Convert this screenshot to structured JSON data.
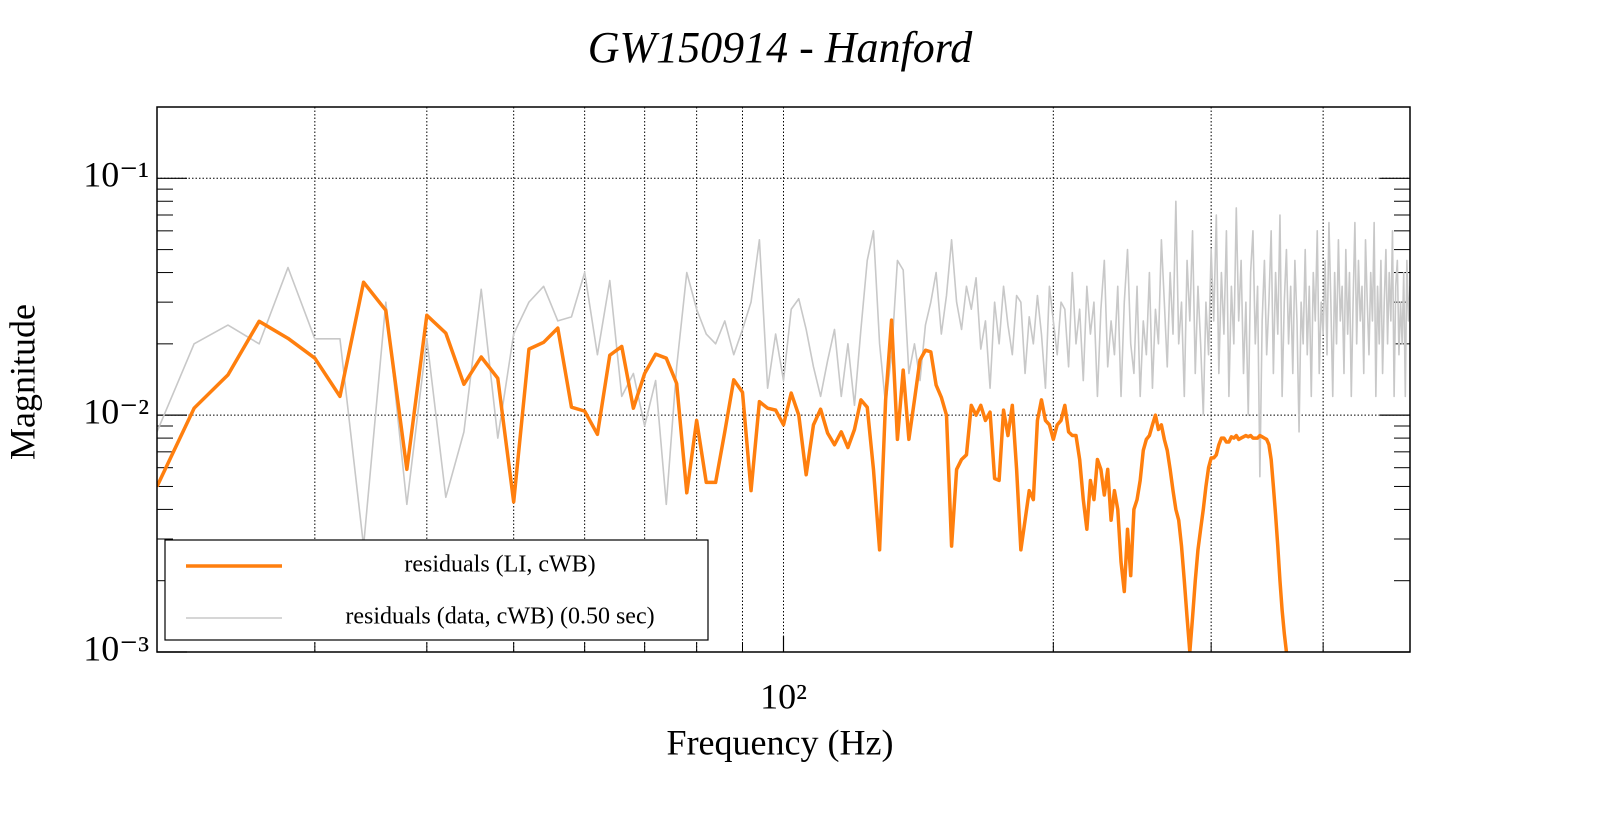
{
  "chart_data": {
    "type": "line",
    "title": "GW150914 - Hanford",
    "xlabel": "Frequency (Hz)",
    "ylabel": "Magnitude",
    "xscale": "log",
    "yscale": "log",
    "grid": true,
    "legend": "lower left",
    "xlim": [
      20,
      500
    ],
    "ylim": [
      0.001,
      0.2
    ],
    "xticks": [
      {
        "value": 100,
        "label": "10²"
      }
    ],
    "xminorticks": [
      30,
      40,
      50,
      60,
      70,
      80,
      90,
      200,
      300,
      400
    ],
    "yticks": [
      {
        "value": 0.001,
        "label": "10⁻³"
      },
      {
        "value": 0.01,
        "label": "10⁻²"
      },
      {
        "value": 0.1,
        "label": "10⁻¹"
      }
    ],
    "yminorticks": [
      0.002,
      0.003,
      0.004,
      0.005,
      0.006,
      0.007,
      0.008,
      0.009,
      0.02,
      0.03,
      0.04,
      0.05,
      0.06,
      0.07,
      0.08,
      0.09,
      0.2
    ],
    "x": [
      20,
      22,
      24,
      26,
      28,
      30,
      32,
      34,
      36,
      38,
      40,
      42,
      44,
      46,
      48,
      50,
      52,
      54,
      56,
      58,
      60,
      62,
      64,
      66,
      68,
      70,
      72,
      74,
      76,
      78,
      80,
      82,
      84,
      86,
      88,
      90,
      92,
      94,
      96,
      98,
      100,
      102,
      104,
      106,
      108,
      110,
      112,
      114,
      116,
      118,
      120,
      122,
      124,
      126,
      128,
      130,
      132,
      134,
      136,
      138,
      140,
      142,
      144,
      146,
      148,
      150,
      152,
      154,
      156,
      158,
      160,
      162,
      164,
      166,
      168,
      170,
      172,
      174,
      176,
      178,
      180,
      182,
      184,
      186,
      188,
      190,
      192,
      194,
      196,
      198,
      200,
      202,
      204,
      206,
      208,
      210,
      212,
      214,
      216,
      218,
      220,
      222,
      224,
      226,
      228,
      230,
      232,
      234,
      236,
      238,
      240,
      242,
      244,
      246,
      248,
      250,
      252,
      254,
      256,
      258,
      260,
      262,
      264,
      266,
      268,
      270,
      272,
      274,
      276,
      278,
      280,
      282,
      284,
      286,
      288,
      290,
      292,
      294,
      296,
      298,
      300,
      302,
      304,
      306,
      308,
      310,
      312,
      314,
      316,
      318,
      320,
      322,
      324,
      326,
      328,
      330,
      332,
      334,
      336,
      338,
      340,
      342,
      344,
      346,
      348,
      350,
      352,
      354,
      356,
      358,
      360,
      362,
      364,
      366,
      368,
      370,
      372,
      374,
      376,
      378,
      380,
      382,
      384,
      386,
      388,
      390,
      392,
      394,
      396,
      398,
      400,
      402,
      404,
      406,
      408,
      410,
      412,
      414,
      416,
      418,
      420,
      422,
      424,
      426,
      428,
      430,
      432,
      434,
      436,
      438,
      440,
      442,
      444,
      446,
      448,
      450,
      452,
      454,
      456,
      458,
      460,
      462,
      464,
      466,
      468,
      470,
      472,
      474,
      476,
      478,
      480,
      482,
      484,
      486,
      488,
      490,
      492,
      494,
      496,
      498,
      500
    ],
    "series": [
      {
        "name": "residuals (LI, cWB)",
        "color": "#ff7f0e",
        "width": 3.5,
        "values": [
          0.005,
          0.0107,
          0.0148,
          0.0249,
          0.0211,
          0.0174,
          0.012,
          0.0364,
          0.0277,
          0.0059,
          0.0264,
          0.0222,
          0.0135,
          0.0176,
          0.0143,
          0.0043,
          0.019,
          0.0203,
          0.0233,
          0.0108,
          0.0104,
          0.0083,
          0.0179,
          0.0195,
          0.0107,
          0.015,
          0.0181,
          0.0174,
          0.0136,
          0.0047,
          0.0095,
          0.0052,
          0.0052,
          0.0085,
          0.0141,
          0.0125,
          0.0048,
          0.0114,
          0.0107,
          0.0105,
          0.0091,
          0.0124,
          0.01,
          0.0056,
          0.0091,
          0.0106,
          0.0084,
          0.0075,
          0.0085,
          0.0073,
          0.0087,
          0.0116,
          0.0108,
          0.0059,
          0.0027,
          0.0116,
          0.0252,
          0.0079,
          0.0155,
          0.0079,
          0.0116,
          0.0171,
          0.0188,
          0.0185,
          0.0134,
          0.0119,
          0.01,
          0.0028,
          0.0059,
          0.0065,
          0.0068,
          0.011,
          0.01,
          0.011,
          0.0095,
          0.0103,
          0.0054,
          0.0053,
          0.0105,
          0.0082,
          0.011,
          0.0059,
          0.0027,
          0.0036,
          0.0048,
          0.0044,
          0.0095,
          0.0116,
          0.0095,
          0.0091,
          0.0079,
          0.0091,
          0.0095,
          0.011,
          0.0085,
          0.0082,
          0.0082,
          0.0065,
          0.0044,
          0.0033,
          0.0053,
          0.0044,
          0.0065,
          0.0059,
          0.0046,
          0.0059,
          0.0036,
          0.0048,
          0.004,
          0.0024,
          0.0018,
          0.0033,
          0.0021,
          0.004,
          0.0044,
          0.0053,
          0.0071,
          0.0079,
          0.0082,
          0.0091,
          0.01,
          0.0087,
          0.0091,
          0.0079,
          0.0071,
          0.0059,
          0.0048,
          0.004,
          0.0036,
          0.0028,
          0.002,
          0.0014,
          0.001,
          0.0014,
          0.002,
          0.0027,
          0.0033,
          0.004,
          0.005,
          0.006,
          0.0066,
          0.0066,
          0.0068,
          0.0075,
          0.008,
          0.008,
          0.0077,
          0.0077,
          0.0081,
          0.008,
          0.0082,
          0.0079,
          0.008,
          0.0081,
          0.0082,
          0.0081,
          0.0082,
          0.008,
          0.008,
          0.008,
          0.0082,
          0.0081,
          0.008,
          0.0079,
          0.0075,
          0.0065,
          0.005,
          0.0038,
          0.0028,
          0.002,
          0.0015,
          0.0012,
          0.001,
          0.0009,
          null,
          null,
          null,
          null,
          null,
          null,
          null,
          null,
          null,
          null,
          null,
          null,
          null,
          null,
          null,
          null,
          null,
          null,
          null,
          null,
          null,
          null,
          null,
          null,
          null,
          null,
          null,
          null,
          null,
          null,
          null,
          null,
          null,
          null,
          null,
          null,
          null,
          null,
          null,
          null,
          null,
          null,
          null,
          null,
          null,
          null,
          null,
          null,
          null,
          null,
          null,
          null,
          null,
          null,
          null,
          null,
          null,
          null,
          null,
          null,
          null,
          null,
          null,
          null,
          null,
          null,
          null
        ]
      },
      {
        "name": "residuals (data, cWB) (0.50 sec)",
        "color": "#c8c8c8",
        "width": 1.6,
        "values": [
          0.0085,
          0.02,
          0.024,
          0.02,
          0.042,
          0.021,
          0.021,
          0.0028,
          0.03,
          0.0042,
          0.021,
          0.0045,
          0.0085,
          0.034,
          0.008,
          0.022,
          0.03,
          0.035,
          0.025,
          0.026,
          0.04,
          0.018,
          0.037,
          0.012,
          0.015,
          0.009,
          0.014,
          0.0042,
          0.016,
          0.04,
          0.028,
          0.022,
          0.02,
          0.025,
          0.018,
          0.023,
          0.03,
          0.055,
          0.013,
          0.022,
          0.014,
          0.028,
          0.031,
          0.023,
          0.016,
          0.012,
          0.017,
          0.023,
          0.012,
          0.02,
          0.011,
          0.023,
          0.045,
          0.06,
          0.02,
          0.011,
          0.018,
          0.045,
          0.041,
          0.015,
          0.02,
          0.014,
          0.024,
          0.03,
          0.04,
          0.022,
          0.032,
          0.055,
          0.03,
          0.023,
          0.035,
          0.028,
          0.038,
          0.019,
          0.025,
          0.013,
          0.03,
          0.02,
          0.035,
          0.024,
          0.018,
          0.032,
          0.03,
          0.015,
          0.026,
          0.02,
          0.032,
          0.022,
          0.013,
          0.035,
          0.025,
          0.018,
          0.03,
          0.028,
          0.016,
          0.04,
          0.02,
          0.028,
          0.014,
          0.035,
          0.022,
          0.03,
          0.012,
          0.028,
          0.045,
          0.016,
          0.025,
          0.018,
          0.035,
          0.012,
          0.03,
          0.05,
          0.02,
          0.015,
          0.035,
          0.012,
          0.025,
          0.018,
          0.04,
          0.013,
          0.028,
          0.02,
          0.055,
          0.03,
          0.016,
          0.04,
          0.022,
          0.08,
          0.02,
          0.03,
          0.012,
          0.045,
          0.025,
          0.06,
          0.015,
          0.035,
          0.02,
          0.01,
          0.03,
          0.018,
          0.05,
          0.025,
          0.07,
          0.015,
          0.04,
          0.022,
          0.06,
          0.012,
          0.035,
          0.02,
          0.075,
          0.025,
          0.045,
          0.015,
          0.03,
          0.01,
          0.04,
          0.06,
          0.02,
          0.035,
          0.0055,
          0.025,
          0.045,
          0.018,
          0.03,
          0.06,
          0.015,
          0.04,
          0.022,
          0.07,
          0.012,
          0.03,
          0.05,
          0.02,
          0.035,
          0.015,
          0.045,
          0.025,
          0.0085,
          0.03,
          0.02,
          0.05,
          0.018,
          0.035,
          0.012,
          0.04,
          0.025,
          0.06,
          0.015,
          0.03,
          0.022,
          0.045,
          0.018,
          0.065,
          0.03,
          0.012,
          0.04,
          0.02,
          0.055,
          0.025,
          0.035,
          0.015,
          0.05,
          0.022,
          0.04,
          0.012,
          0.03,
          0.065,
          0.02,
          0.045,
          0.025,
          0.035,
          0.015,
          0.055,
          0.03,
          0.018,
          0.04,
          0.025,
          0.065,
          0.012,
          0.035,
          0.02,
          0.045,
          0.015,
          0.03,
          0.05,
          0.02,
          0.04,
          0.025,
          0.06,
          0.012,
          0.035,
          0.045,
          0.018,
          0.03,
          0.02,
          0.04,
          0.012,
          0.045,
          0.025,
          0.035
        ]
      }
    ]
  }
}
